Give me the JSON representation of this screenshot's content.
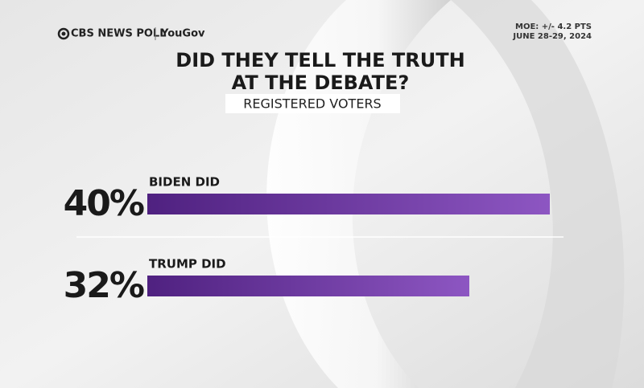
{
  "chart_data": {
    "type": "bar",
    "orientation": "horizontal",
    "brand": "CBS NEWS POLL",
    "partner": "YouGov",
    "notes": [
      "MOE: +/- 4.2 PTS",
      "JUNE 28-29, 2024"
    ],
    "title": [
      "DID THEY TELL THE TRUTH",
      "AT THE DEBATE?"
    ],
    "subtitle": "REGISTERED VOTERS",
    "categories": [
      "BIDEN DID",
      "TRUMP DID"
    ],
    "values": [
      40,
      32
    ],
    "value_labels": [
      "40%",
      "32%"
    ],
    "color": "#6a35a3"
  }
}
